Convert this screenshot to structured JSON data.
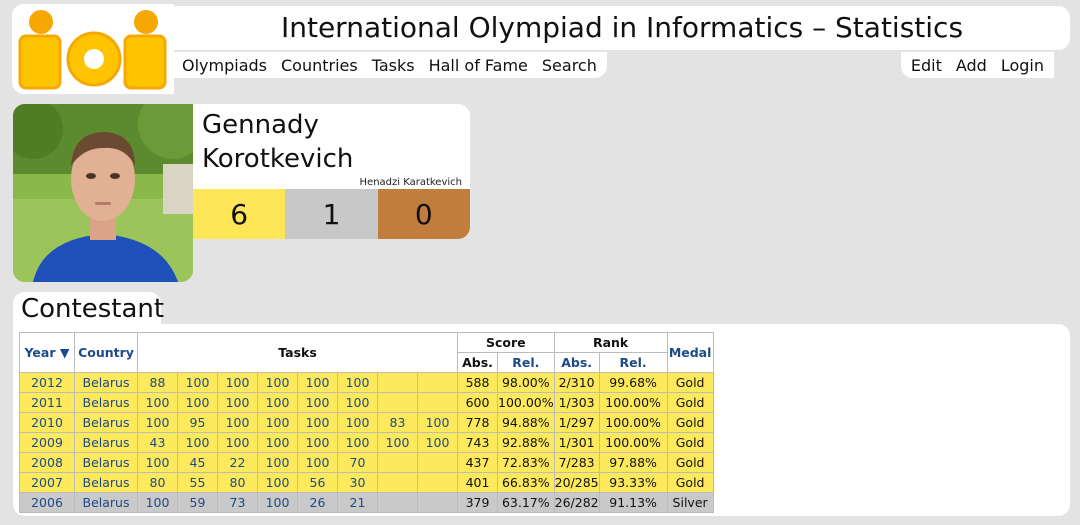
{
  "site": {
    "title": "International Olympiad in Informatics – Statistics",
    "logo_text": "ioi"
  },
  "nav": {
    "left": [
      "Olympiads",
      "Countries",
      "Tasks",
      "Hall of Fame",
      "Search"
    ],
    "right": [
      "Edit",
      "Add",
      "Login"
    ]
  },
  "person": {
    "name": "Gennady Korotkevich",
    "alt_name": "Henadzi Karatkevich",
    "medals": {
      "gold": "6",
      "silver": "1",
      "bronze": "0"
    }
  },
  "icons": [
    "bar-chart-icon",
    "codeforces-icon",
    "topcoder-icon",
    "twitter-icon"
  ],
  "colors": {
    "gold": "#fde657",
    "silver": "#c8c8c8",
    "bronze": "#c07d3e",
    "link": "#1d4a8a"
  },
  "section_title": "Contestant",
  "table": {
    "headers": {
      "year": "Year ▼",
      "country": "Country",
      "tasks": "Tasks",
      "score": "Score",
      "rank": "Rank",
      "medal": "Medal",
      "abs": "Abs.",
      "rel": "Rel."
    },
    "rows": [
      {
        "year": "2012",
        "country": "Belarus",
        "tasks": [
          "88",
          "100",
          "100",
          "100",
          "100",
          "100",
          "",
          ""
        ],
        "score_abs": "588",
        "score_rel": "98.00%",
        "rank_abs": "2/310",
        "rank_rel": "99.68%",
        "medal": "Gold"
      },
      {
        "year": "2011",
        "country": "Belarus",
        "tasks": [
          "100",
          "100",
          "100",
          "100",
          "100",
          "100",
          "",
          ""
        ],
        "score_abs": "600",
        "score_rel": "100.00%",
        "rank_abs": "1/303",
        "rank_rel": "100.00%",
        "medal": "Gold"
      },
      {
        "year": "2010",
        "country": "Belarus",
        "tasks": [
          "100",
          "95",
          "100",
          "100",
          "100",
          "100",
          "83",
          "100"
        ],
        "score_abs": "778",
        "score_rel": "94.88%",
        "rank_abs": "1/297",
        "rank_rel": "100.00%",
        "medal": "Gold"
      },
      {
        "year": "2009",
        "country": "Belarus",
        "tasks": [
          "43",
          "100",
          "100",
          "100",
          "100",
          "100",
          "100",
          "100"
        ],
        "score_abs": "743",
        "score_rel": "92.88%",
        "rank_abs": "1/301",
        "rank_rel": "100.00%",
        "medal": "Gold"
      },
      {
        "year": "2008",
        "country": "Belarus",
        "tasks": [
          "100",
          "45",
          "22",
          "100",
          "100",
          "70",
          "",
          ""
        ],
        "score_abs": "437",
        "score_rel": "72.83%",
        "rank_abs": "7/283",
        "rank_rel": "97.88%",
        "medal": "Gold"
      },
      {
        "year": "2007",
        "country": "Belarus",
        "tasks": [
          "80",
          "55",
          "80",
          "100",
          "56",
          "30",
          "",
          ""
        ],
        "score_abs": "401",
        "score_rel": "66.83%",
        "rank_abs": "20/285",
        "rank_rel": "93.33%",
        "medal": "Gold"
      },
      {
        "year": "2006",
        "country": "Belarus",
        "tasks": [
          "100",
          "59",
          "73",
          "100",
          "26",
          "21",
          "",
          ""
        ],
        "score_abs": "379",
        "score_rel": "63.17%",
        "rank_abs": "26/282",
        "rank_rel": "91.13%",
        "medal": "Silver"
      }
    ]
  }
}
